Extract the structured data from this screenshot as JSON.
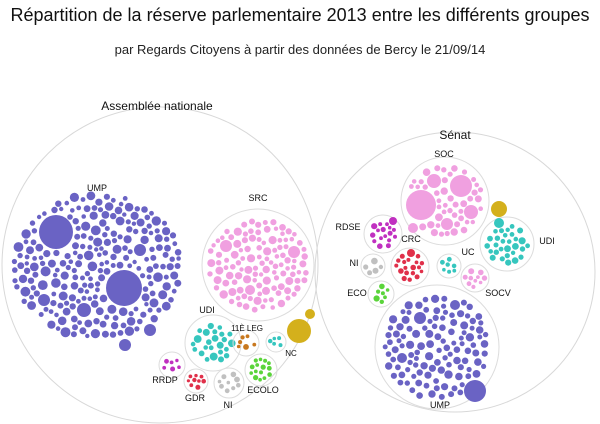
{
  "title": "Répartition de la réserve parlementaire 2013 entre les différents groupes",
  "subtitle": "par Regards Citoyens à partir des données de Bercy le 21/09/14",
  "chart_data": {
    "type": "bubble-pack",
    "chambers": [
      {
        "name": "Assemblée nationale",
        "groups": [
          {
            "name": "UMP",
            "color": "#6a63c4"
          },
          {
            "name": "SRC",
            "color": "#f0a0e0"
          },
          {
            "name": "UDI",
            "color": "#36c6be"
          },
          {
            "name": "11È LEG",
            "color": "#c8781e"
          },
          {
            "name": "NC",
            "color": "#36c6be"
          },
          {
            "name": "RRDP",
            "color": "#c030c0"
          },
          {
            "name": "GDR",
            "color": "#e0304a"
          },
          {
            "name": "NI",
            "color": "#c0c0c0"
          },
          {
            "name": "ECOLO",
            "color": "#5ad43a"
          },
          {
            "name": "",
            "color": "#d4b01c"
          }
        ]
      },
      {
        "name": "Sénat",
        "groups": [
          {
            "name": "SOC",
            "color": "#f0a0e0"
          },
          {
            "name": "RDSE",
            "color": "#c030c0"
          },
          {
            "name": "CRC",
            "color": "#e0304a"
          },
          {
            "name": "NI",
            "color": "#c0c0c0"
          },
          {
            "name": "ECO",
            "color": "#5ad43a"
          },
          {
            "name": "UC",
            "color": "#36c6be"
          },
          {
            "name": "UDI",
            "color": "#36c6be"
          },
          {
            "name": "SOCV",
            "color": "#f0a0e0"
          },
          {
            "name": "UMP",
            "color": "#6a63c4"
          },
          {
            "name": "",
            "color": "#d4b01c"
          }
        ]
      }
    ]
  }
}
